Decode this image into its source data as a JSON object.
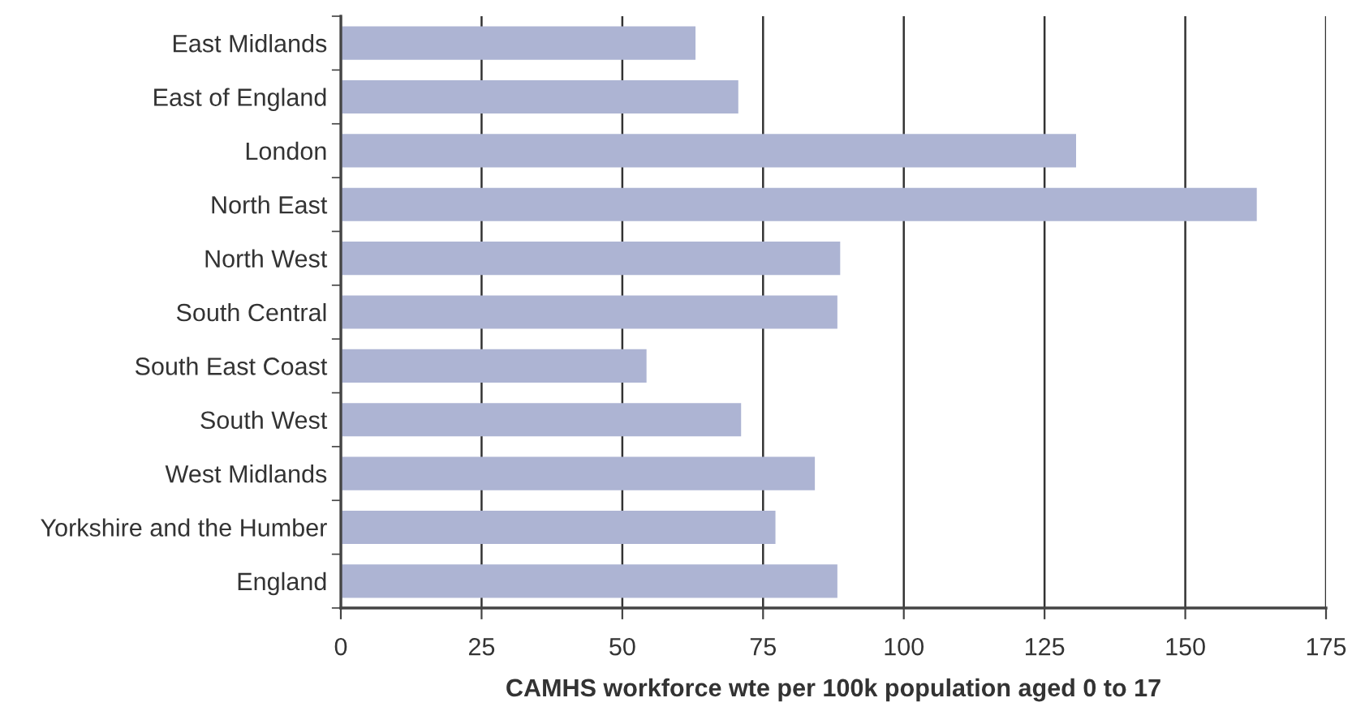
{
  "chart_data": {
    "type": "bar",
    "orientation": "horizontal",
    "xlabel": "CAMHS workforce wte per 100k population aged 0 to 17",
    "categories": [
      "East Midlands",
      "East of England",
      "London",
      "North East",
      "North West",
      "South Central",
      "South East Coast",
      "South West",
      "West Midlands",
      "Yorkshire and the Humber",
      "England"
    ],
    "values": [
      63.0,
      70.6,
      130.6,
      162.7,
      88.7,
      88.2,
      54.3,
      71.1,
      84.2,
      77.2,
      88.2
    ],
    "color": "#adb4d3",
    "xlim": [
      0,
      175
    ],
    "xticks": [
      0,
      25,
      50,
      75,
      100,
      125,
      150,
      175
    ],
    "grid": "x"
  }
}
